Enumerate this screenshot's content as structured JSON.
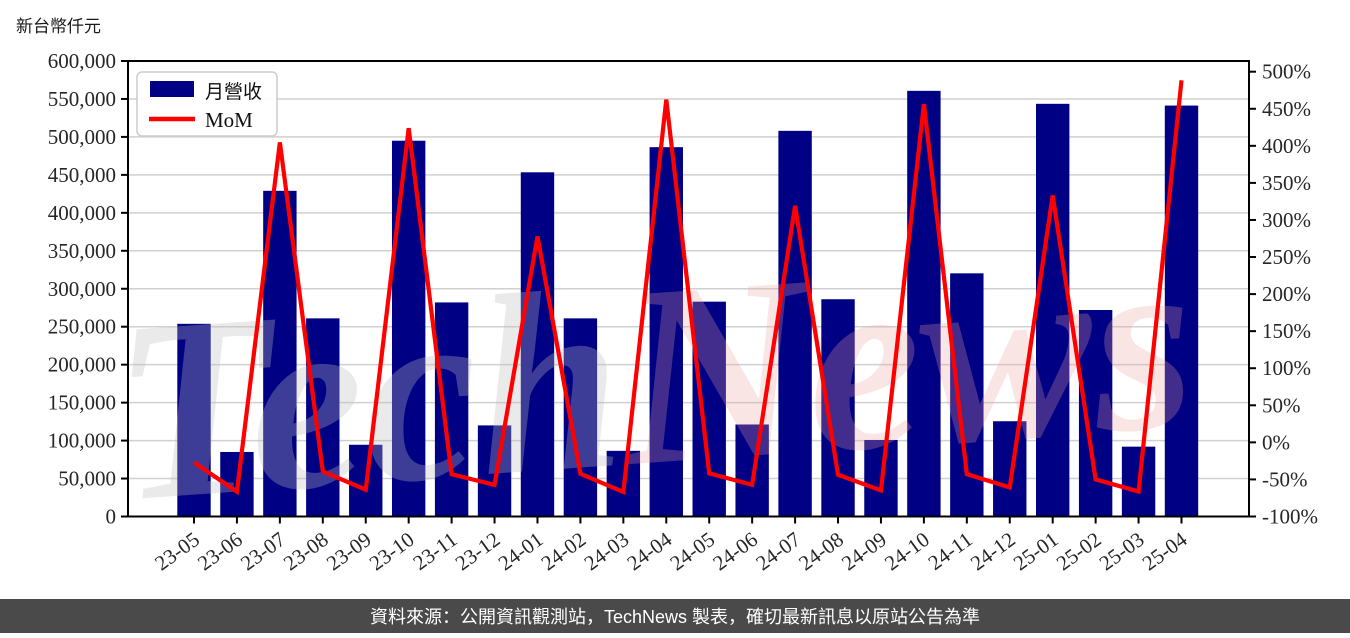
{
  "title": "新台幣仟元",
  "caption": "資料來源：公開資訊觀測站，TechNews 製表，確切最新訊息以原站公告為準",
  "legend": {
    "bar_label": "月營收",
    "line_label": "MoM"
  },
  "watermark": {
    "part1": "Tech",
    "part2": "News"
  },
  "colors": {
    "bar": "#000085",
    "line": "#ff0000",
    "grid": "#d0d0d0",
    "spine": "#000000",
    "tick_text": "#262626",
    "legend_border": "#cccccc",
    "legend_bg": "#ffffff",
    "caption_bg": "#4a4a4a",
    "caption_text": "#ffffff",
    "watermark_gray": "#bfbfbf",
    "watermark_pink": "#eda0a0"
  },
  "chart_data": {
    "type": "bar+line combo",
    "categories": [
      "23-05",
      "23-06",
      "23-07",
      "23-08",
      "23-09",
      "23-10",
      "23-11",
      "23-12",
      "24-01",
      "24-02",
      "24-03",
      "24-04",
      "24-05",
      "24-06",
      "24-07",
      "24-08",
      "24-09",
      "24-10",
      "24-11",
      "24-12",
      "25-01",
      "25-02",
      "25-03",
      "25-04"
    ],
    "series": [
      {
        "name": "月營收",
        "type": "bar",
        "axis": "left",
        "unit": "新台幣仟元",
        "values": [
          253800,
          85000,
          429000,
          261000,
          94500,
          495000,
          282000,
          120000,
          453400,
          261000,
          86500,
          486500,
          283000,
          121200,
          508000,
          286200,
          100800,
          560700,
          320300,
          125500,
          543600,
          272000,
          92000,
          541300
        ]
      },
      {
        "name": "MoM",
        "type": "line",
        "axis": "right",
        "unit": "%",
        "values": [
          -27.0,
          -66.5,
          404.7,
          -39.2,
          -63.8,
          423.8,
          -43.0,
          -57.4,
          277.8,
          -42.4,
          -66.9,
          462.4,
          -41.8,
          -57.2,
          319.1,
          -43.7,
          -64.8,
          456.3,
          -42.9,
          -60.8,
          333.1,
          -50.0,
          -66.2,
          488.4
        ]
      }
    ],
    "left_axis": {
      "title": "新台幣仟元",
      "min": 0,
      "max": 600000,
      "tick_step": 50000,
      "tick_labels": [
        "0",
        "50,000",
        "100,000",
        "150,000",
        "200,000",
        "250,000",
        "300,000",
        "350,000",
        "400,000",
        "450,000",
        "500,000",
        "550,000",
        "600,000"
      ]
    },
    "right_axis": {
      "min": -100,
      "max": 500,
      "tick_step": 50,
      "tick_labels": [
        "-100%",
        "-50%",
        "0%",
        "50%",
        "100%",
        "150%",
        "200%",
        "250%",
        "300%",
        "350%",
        "400%",
        "450%",
        "500%"
      ]
    },
    "grid": "horizontal",
    "legend_position": "upper-left"
  }
}
